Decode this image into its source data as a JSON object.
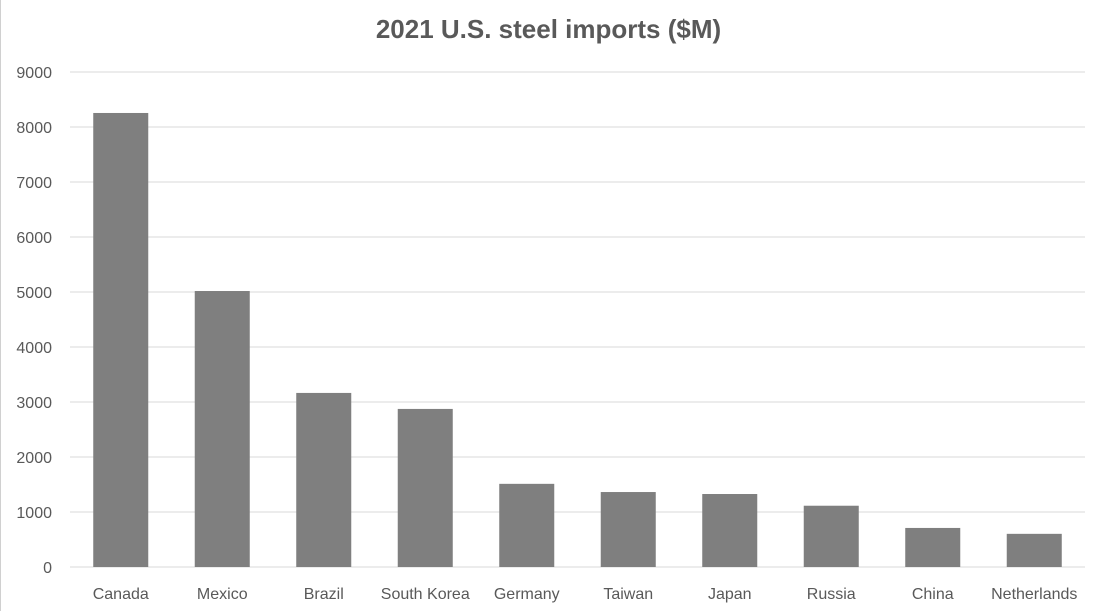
{
  "chart_data": {
    "type": "bar",
    "title": "2021 U.S. steel imports ($M)",
    "xlabel": "",
    "ylabel": "",
    "categories": [
      "Canada",
      "Mexico",
      "Brazil",
      "South Korea",
      "Germany",
      "Taiwan",
      "Japan",
      "Russia",
      "China",
      "Netherlands"
    ],
    "values": [
      8255,
      5018,
      3165,
      2874,
      1512,
      1363,
      1327,
      1114,
      710,
      603
    ],
    "ylim": [
      0,
      9000
    ],
    "yticks": [
      0,
      1000,
      2000,
      3000,
      4000,
      5000,
      6000,
      7000,
      8000,
      9000
    ],
    "grid": true,
    "legend": "none",
    "bar_color": "#7f7f7f",
    "grid_color": "#d9d9d9"
  }
}
